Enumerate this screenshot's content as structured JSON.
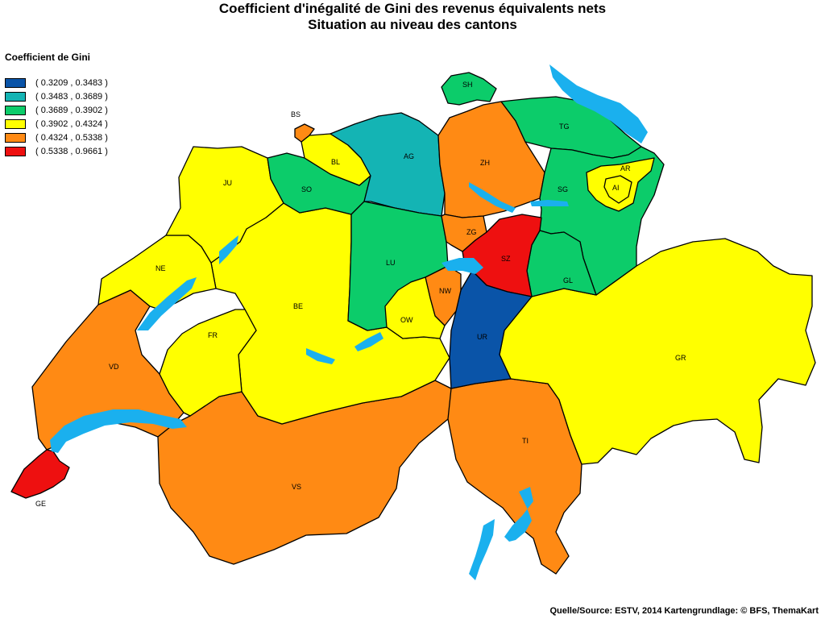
{
  "title_line1": "Coefficient d'inégalité de Gini des revenus équivalents nets",
  "title_line2": "Situation au niveau des cantons",
  "legend": {
    "title": "Coefficient de Gini",
    "items": [
      {
        "label": "( 0.3209 , 0.3483 )",
        "color": "#0a54a8"
      },
      {
        "label": "( 0.3483 , 0.3689 )",
        "color": "#14b4b4"
      },
      {
        "label": "( 0.3689 , 0.3902 )",
        "color": "#0ccc6a"
      },
      {
        "label": "( 0.3902 , 0.4324 )",
        "color": "#ffff00"
      },
      {
        "label": "( 0.4324 , 0.5338 )",
        "color": "#ff8a14"
      },
      {
        "label": "( 0.5338 , 0.9661 )",
        "color": "#ee1010"
      }
    ]
  },
  "lake_color": "#1ab0ee",
  "cantons": {
    "GE": {
      "label": "GE",
      "class": 5
    },
    "VD": {
      "label": "VD",
      "class": 4
    },
    "VS": {
      "label": "VS",
      "class": 4
    },
    "TI": {
      "label": "TI",
      "class": 4
    },
    "GR": {
      "label": "GR",
      "class": 3
    },
    "BE": {
      "label": "BE",
      "class": 3
    },
    "FR": {
      "label": "FR",
      "class": 3
    },
    "NE": {
      "label": "NE",
      "class": 3
    },
    "JU": {
      "label": "JU",
      "class": 3
    },
    "SO": {
      "label": "SO",
      "class": 2
    },
    "BL": {
      "label": "BL",
      "class": 3
    },
    "BS": {
      "label": "BS",
      "class": 4
    },
    "AG": {
      "label": "AG",
      "class": 1
    },
    "LU": {
      "label": "LU",
      "class": 2
    },
    "ZH": {
      "label": "ZH",
      "class": 4
    },
    "SH": {
      "label": "SH",
      "class": 2
    },
    "TG": {
      "label": "TG",
      "class": 2
    },
    "SG": {
      "label": "SG",
      "class": 2
    },
    "AR": {
      "label": "AR",
      "class": 3
    },
    "AI": {
      "label": "AI",
      "class": 3
    },
    "GL": {
      "label": "GL",
      "class": 2
    },
    "SZ": {
      "label": "SZ",
      "class": 5
    },
    "ZG": {
      "label": "ZG",
      "class": 4
    },
    "UR": {
      "label": "UR",
      "class": 0
    },
    "NW": {
      "label": "NW",
      "class": 4
    },
    "OW": {
      "label": "OW",
      "class": 3
    }
  },
  "footer": "Quelle/Source: ESTV, 2014 Kartengrundlage: © BFS, ThemaKart"
}
